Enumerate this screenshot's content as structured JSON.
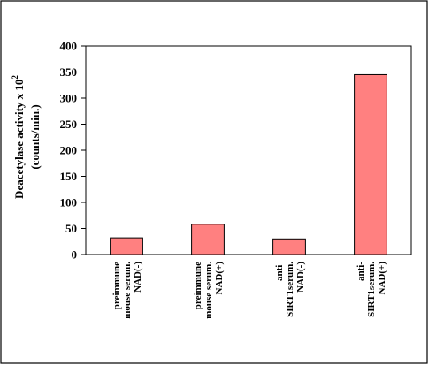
{
  "chart_data": {
    "type": "bar",
    "categories": [
      [
        "preimmune",
        "mouse serum.",
        "NAD(-)"
      ],
      [
        "preimmune",
        "mouse serum.",
        "NAD(+)"
      ],
      [
        "anti-",
        "SIRT1serum.",
        "NAD(-)"
      ],
      [
        "anti-",
        "SIRT1serum.",
        "NAD(+)"
      ]
    ],
    "values": [
      32,
      58,
      30,
      345
    ],
    "ylabel": {
      "line1": "Deacetylase activity x 10",
      "superscript": "2",
      "line2": "(counts/min.)"
    },
    "ylim": [
      0,
      400
    ],
    "yticks": [
      0,
      50,
      100,
      150,
      200,
      250,
      300,
      350,
      400
    ],
    "grid": false,
    "legend": "none",
    "colors": {
      "bar_fill": "#ff8080",
      "bar_stroke": "#000000",
      "frame": "#000000"
    }
  }
}
